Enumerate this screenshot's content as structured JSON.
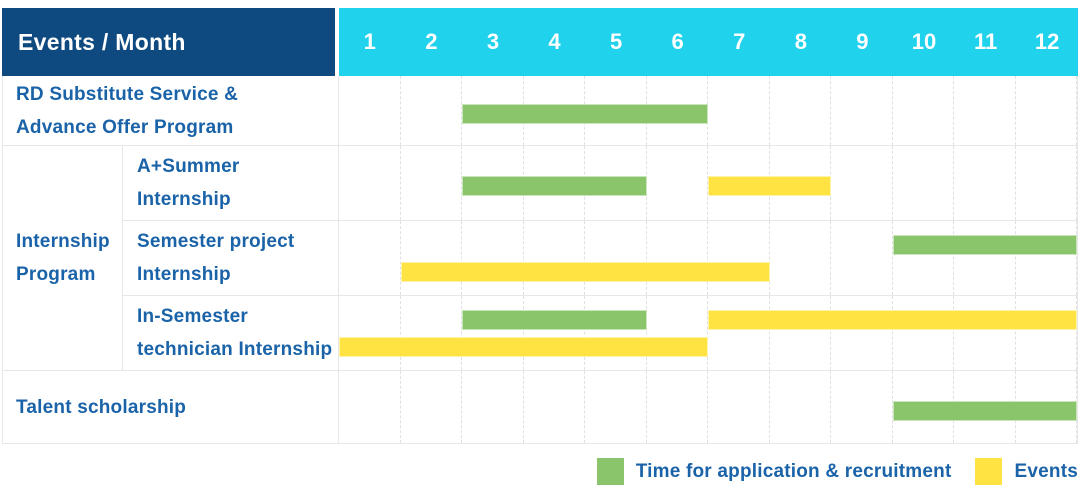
{
  "colors": {
    "header_bg": "#0e4a7f",
    "month_bar_bg": "#20d2ec",
    "label_text": "#1a63a8",
    "green": "#8ac46b",
    "yellow": "#ffe342",
    "grid_line": "#e7e7e7",
    "header_text": "#ffffff"
  },
  "header": {
    "label": "Events / Month",
    "months": [
      "1",
      "2",
      "3",
      "4",
      "5",
      "6",
      "7",
      "8",
      "9",
      "10",
      "11",
      "12"
    ]
  },
  "legend": [
    {
      "swatch": "green",
      "label": "Time for application & recruitment"
    },
    {
      "swatch": "yellow",
      "label": "Events"
    }
  ],
  "chart_data": {
    "type": "bar",
    "variant": "gantt",
    "title": "Events / Month",
    "x_axis": {
      "label": "Month",
      "ticks": [
        1,
        2,
        3,
        4,
        5,
        6,
        7,
        8,
        9,
        10,
        11,
        12
      ],
      "range": [
        1,
        12
      ]
    },
    "series_meaning": {
      "green": "Time for application & recruitment",
      "yellow": "Events"
    },
    "group": {
      "label": "Internship Program",
      "label_lines": [
        "Internship",
        "Program"
      ],
      "row_indexes": [
        1,
        2,
        3
      ]
    },
    "rows": [
      {
        "label": "RD Substitute Service & Advance Offer Program",
        "label_lines": [
          "RD Substitute Service &",
          "Advance Offer Program"
        ],
        "group": null,
        "bars": [
          {
            "series": "Time for application & recruitment",
            "color": "green",
            "start_month": 3,
            "end_month": 6,
            "lane": "single"
          }
        ]
      },
      {
        "label": "A+Summer Internship",
        "label_lines": [
          "A+Summer",
          "Internship"
        ],
        "group": "Internship Program",
        "bars": [
          {
            "series": "Time for application & recruitment",
            "color": "green",
            "start_month": 3,
            "end_month": 5,
            "lane": "single"
          },
          {
            "series": "Events",
            "color": "yellow",
            "start_month": 7,
            "end_month": 8,
            "lane": "single"
          }
        ]
      },
      {
        "label": "Semester project Internship",
        "label_lines": [
          "Semester project",
          "Internship"
        ],
        "group": "Internship Program",
        "bars": [
          {
            "series": "Time for application & recruitment",
            "color": "green",
            "start_month": 10,
            "end_month": 12,
            "lane": "top"
          },
          {
            "series": "Events",
            "color": "yellow",
            "start_month": 2,
            "end_month": 7,
            "lane": "bottom"
          }
        ]
      },
      {
        "label": "In-Semester technician Internship",
        "label_lines": [
          "In-Semester",
          "technician Internship"
        ],
        "group": "Internship Program",
        "bars": [
          {
            "series": "Time for application & recruitment",
            "color": "green",
            "start_month": 3,
            "end_month": 5,
            "lane": "top"
          },
          {
            "series": "Events",
            "color": "yellow",
            "start_month": 7,
            "end_month": 12,
            "lane": "top"
          },
          {
            "series": "Events",
            "color": "yellow",
            "start_month": 1,
            "end_month": 6,
            "lane": "bottom"
          }
        ]
      },
      {
        "label": "Talent scholarship",
        "label_lines": [
          "Talent scholarship"
        ],
        "group": null,
        "bars": [
          {
            "series": "Time for application & recruitment",
            "color": "green",
            "start_month": 10,
            "end_month": 12,
            "lane": "single"
          }
        ]
      }
    ]
  }
}
